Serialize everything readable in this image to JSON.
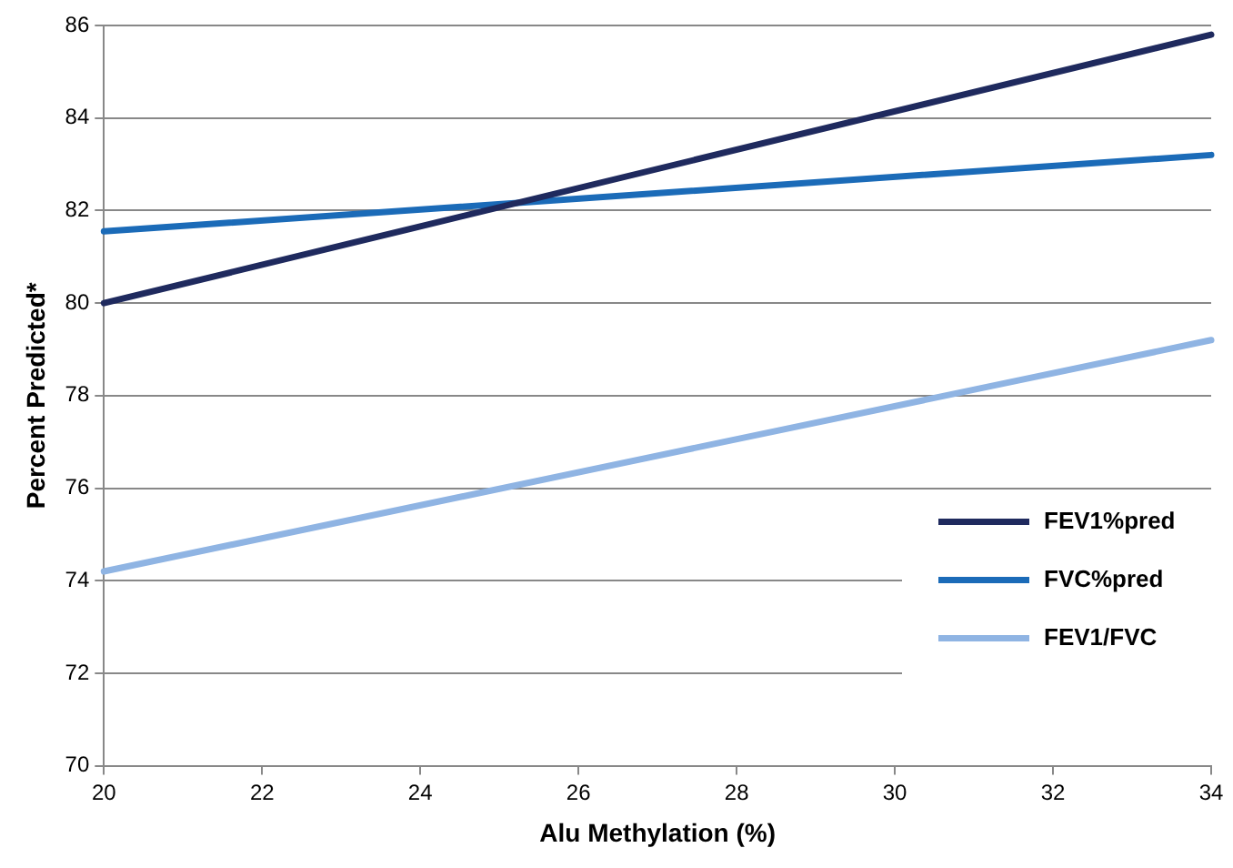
{
  "chart_data": {
    "type": "line",
    "xlabel": "Alu Methylation (%)",
    "ylabel": "Percent Predicted*",
    "xlim": [
      20,
      34
    ],
    "xticks": [
      20,
      22,
      24,
      26,
      28,
      30,
      32,
      34
    ],
    "ylim": [
      70,
      86
    ],
    "yticks": [
      70,
      72,
      74,
      76,
      78,
      80,
      82,
      84,
      86
    ],
    "grid": "y",
    "legend": "bottom right",
    "marker": "none",
    "line_style": "solid",
    "x": [
      20,
      34
    ],
    "series": [
      {
        "name": "FEV1%pred",
        "color": "#1f2a5e",
        "values": [
          80,
          85.8
        ]
      },
      {
        "name": "FVC%pred",
        "color": "#1b6bb8",
        "values": [
          81.55,
          83.2
        ]
      },
      {
        "name": "FEV1/FVC",
        "color": "#8fb4e3",
        "values": [
          74.2,
          79.2
        ]
      }
    ]
  }
}
